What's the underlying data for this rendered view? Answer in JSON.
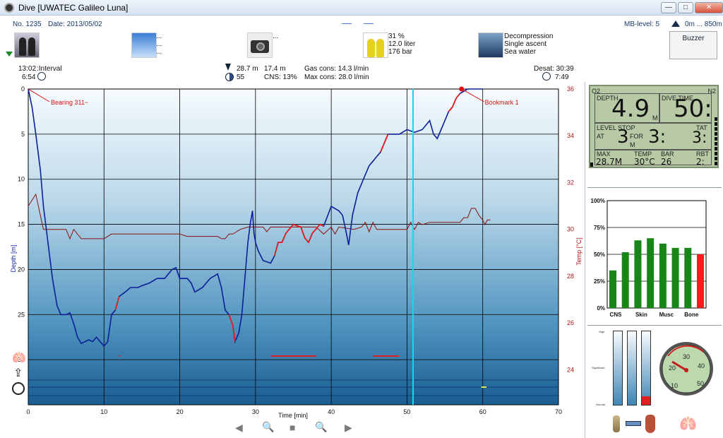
{
  "window": {
    "title": "Dive  [UWATEC Galileo Luna]",
    "buttons": [
      "—",
      "□",
      "✕"
    ]
  },
  "header": {
    "no_label": "No. 1235",
    "date_label": "Date: 2013/05/02",
    "mb_level": "MB-level: 5",
    "altitude": "0m ... 850m",
    "buzzer": "Buzzer",
    "weather": [
      "...",
      "...",
      "..."
    ],
    "camera": [
      "..."
    ],
    "tanks": [
      "31 %",
      "12.0 liter",
      "176 bar"
    ],
    "diving": [
      "Decompression",
      "Single ascent",
      "Sea water"
    ]
  },
  "stats": {
    "start_time": "13:02",
    "interval_label": ":Interval",
    "interval": "6:54",
    "max_depth": "28.7 m",
    "avg_depth": "17.4 m",
    "time_icon_value": "55",
    "cns": "CNS:  13%",
    "gas_cons": "Gas cons: 14.3 l/min",
    "max_cons": "Max cons: 28.0 l/min",
    "desat": "Desat: 30:39",
    "no_fly": "7:49"
  },
  "chart_data": {
    "type": "line",
    "xlabel": "Time [min]",
    "ylabel_left": "Depth [m]",
    "ylabel_right": "Temp [°C]",
    "x_ticks": [
      "0",
      "10",
      "20",
      "30",
      "40",
      "50",
      "60",
      "70"
    ],
    "xlim": [
      0,
      70
    ],
    "y_left_ticks": [
      "0",
      "5",
      "10",
      "15",
      "20",
      "25",
      "30"
    ],
    "ylim_left": [
      0,
      35
    ],
    "y_right_ticks": [
      "36",
      "34",
      "32",
      "30",
      "28",
      "26",
      "24"
    ],
    "ylim_right": [
      22.5,
      36
    ],
    "cursor_x": 50.8,
    "annotations": [
      {
        "text": "Bearing 311~",
        "x": 0,
        "y": 0
      },
      {
        "text": "Bookmark 1",
        "x": 57.2,
        "y": 0
      }
    ],
    "depth": [
      [
        0,
        0
      ],
      [
        0.5,
        2
      ],
      [
        1,
        5
      ],
      [
        1.6,
        9
      ],
      [
        2,
        13
      ],
      [
        2.6,
        17
      ],
      [
        3.2,
        21
      ],
      [
        3.8,
        24
      ],
      [
        4.3,
        25
      ],
      [
        5,
        25
      ],
      [
        5.5,
        24.8
      ],
      [
        6,
        26
      ],
      [
        6.5,
        27.5
      ],
      [
        7,
        28.2
      ],
      [
        7.5,
        28
      ],
      [
        8,
        27.8
      ],
      [
        8.5,
        28
      ],
      [
        9,
        27.5
      ],
      [
        9.5,
        28
      ],
      [
        10,
        28.5
      ],
      [
        10.5,
        28
      ],
      [
        11,
        25
      ],
      [
        11.5,
        24.5
      ],
      [
        12,
        23
      ],
      [
        12.8,
        22.5
      ],
      [
        13.5,
        22
      ],
      [
        14.5,
        22
      ],
      [
        15,
        21.8
      ],
      [
        16,
        21.5
      ],
      [
        17,
        21
      ],
      [
        18,
        21
      ],
      [
        18.5,
        20.5
      ],
      [
        19,
        20
      ],
      [
        19.5,
        19.8
      ],
      [
        20,
        21
      ],
      [
        21,
        21
      ],
      [
        21.5,
        21.5
      ],
      [
        22,
        22.5
      ],
      [
        23,
        22
      ],
      [
        23.5,
        21.5
      ],
      [
        24,
        21
      ],
      [
        25,
        20.5
      ],
      [
        25.5,
        22
      ],
      [
        26,
        24.5
      ],
      [
        26.5,
        25
      ],
      [
        27,
        26.2
      ],
      [
        27.3,
        28
      ],
      [
        27.8,
        27
      ],
      [
        28.2,
        25
      ],
      [
        28.7,
        20
      ],
      [
        29,
        17
      ],
      [
        29.3,
        15
      ],
      [
        29.6,
        13.5
      ],
      [
        29.8,
        16
      ],
      [
        30,
        17
      ],
      [
        30.4,
        18
      ],
      [
        31,
        19
      ],
      [
        32,
        19.3
      ],
      [
        32.5,
        18.5
      ],
      [
        33,
        17
      ],
      [
        33.5,
        17
      ],
      [
        34,
        16
      ],
      [
        35,
        15
      ],
      [
        36,
        15.3
      ],
      [
        36.5,
        16.5
      ],
      [
        37,
        17
      ],
      [
        37.5,
        16
      ],
      [
        38,
        15.5
      ],
      [
        38.5,
        15
      ],
      [
        39,
        15.2
      ],
      [
        40,
        13
      ],
      [
        41,
        13.5
      ],
      [
        41.5,
        14
      ],
      [
        42,
        16
      ],
      [
        42.3,
        17.3
      ],
      [
        42.8,
        14
      ],
      [
        43.5,
        11.5
      ],
      [
        44,
        10.5
      ],
      [
        44.5,
        9.5
      ],
      [
        45,
        8.5
      ],
      [
        45.5,
        8
      ],
      [
        46,
        7.5
      ],
      [
        46.5,
        7
      ],
      [
        47,
        6
      ],
      [
        47.5,
        5
      ],
      [
        48,
        5
      ],
      [
        49,
        5
      ],
      [
        50,
        4.5
      ],
      [
        51,
        4.8
      ],
      [
        52,
        4.5
      ],
      [
        52.5,
        4
      ],
      [
        53,
        3.5
      ],
      [
        53.5,
        5
      ],
      [
        54,
        5.5
      ],
      [
        54.5,
        4.5
      ],
      [
        55,
        3.5
      ],
      [
        55.5,
        2.5
      ],
      [
        56,
        2
      ],
      [
        56.5,
        1
      ],
      [
        57,
        0.5
      ],
      [
        58,
        0
      ],
      [
        60,
        0
      ]
    ],
    "depth_red_segments": [
      [
        11.5,
        12.3
      ],
      [
        26.5,
        27.5
      ],
      [
        32.5,
        39.5
      ],
      [
        46.5,
        47.8
      ],
      [
        55.5,
        57
      ]
    ],
    "temperature": [
      [
        0,
        31
      ],
      [
        1,
        31.5
      ],
      [
        2,
        30
      ],
      [
        3,
        30
      ],
      [
        4,
        30
      ],
      [
        5,
        30
      ],
      [
        5.5,
        29.6
      ],
      [
        6,
        30
      ],
      [
        7,
        29.6
      ],
      [
        10,
        29.6
      ],
      [
        10.5,
        29.7
      ],
      [
        11,
        29.8
      ],
      [
        20,
        29.8
      ],
      [
        21,
        29.7
      ],
      [
        25,
        29.7
      ],
      [
        25.5,
        29.6
      ],
      [
        26,
        29.6
      ],
      [
        26.5,
        29.8
      ],
      [
        27,
        29.8
      ],
      [
        28,
        30
      ],
      [
        29,
        30.1
      ],
      [
        31,
        30.1
      ],
      [
        31.5,
        29.9
      ],
      [
        32,
        30.1
      ],
      [
        38,
        30.1
      ],
      [
        39,
        29.8
      ],
      [
        40,
        30.1
      ],
      [
        40.5,
        29.8
      ],
      [
        41,
        30.1
      ],
      [
        43,
        30
      ],
      [
        44,
        30.1
      ],
      [
        44.5,
        30.3
      ],
      [
        45,
        29.9
      ],
      [
        45.5,
        30.3
      ],
      [
        46,
        30
      ],
      [
        50,
        30
      ],
      [
        50.5,
        30.3
      ],
      [
        51,
        30
      ],
      [
        51.5,
        30.3
      ],
      [
        52,
        30.2
      ],
      [
        53,
        30.3
      ],
      [
        56,
        30.3
      ],
      [
        57,
        30.3
      ],
      [
        57.5,
        30.5
      ],
      [
        58,
        30.5
      ],
      [
        58.5,
        30.9
      ],
      [
        59,
        30.9
      ],
      [
        59.5,
        30.6
      ],
      [
        60,
        30.4
      ],
      [
        60.3,
        30.2
      ],
      [
        60.6,
        30.4
      ],
      [
        61,
        30.4
      ]
    ],
    "alarm_row_red": [
      [
        12,
        12.2
      ],
      [
        32,
        38
      ],
      [
        45.5,
        49
      ]
    ]
  },
  "computer": {
    "o2": "O2",
    "n2": "N2",
    "depth_label": "DEPTH",
    "depth": "4.9",
    "depth_unit": "M",
    "dive_time_label": "DIVE TIME",
    "dive_time": "50:",
    "level_stop_label": "LEVEL STOP",
    "at_label": "AT",
    "at_value": "3",
    "at_unit": "M",
    "for_label": "FOR",
    "for_value": "3:",
    "tat_label": "TAT",
    "tat_value": "3:",
    "max_label": "MAX",
    "max_value": "28.7M",
    "temp_label": "TEMP",
    "temp_value": "30°C",
    "bar_label": "BAR",
    "bar_value": "26",
    "rbt_label": "RBT",
    "rbt_value": "2:"
  },
  "tissue_chart": {
    "type": "bar",
    "y_ticks": [
      "100%",
      "75%",
      "50%",
      "25%",
      "0%"
    ],
    "categories": [
      "CNS",
      "Skin",
      "Musc",
      "Bone"
    ],
    "values": [
      35,
      52,
      63,
      65,
      60,
      56,
      56,
      50
    ],
    "colors": [
      "#178617",
      "#178617",
      "#178617",
      "#178617",
      "#178617",
      "#178617",
      "#178617",
      "#ef1f1f"
    ]
  },
  "gauges": {
    "levels": [
      "High",
      "Significant",
      "Normal"
    ],
    "bars": [
      0.0,
      0.0,
      0.12
    ],
    "dial_labels": [
      "30",
      "40",
      "50",
      "20",
      "10"
    ]
  },
  "colors": {
    "depth": "#0b1f9a",
    "red": "#e21f1f",
    "temp": "#8a1010",
    "cursor": "#19d6e6"
  }
}
